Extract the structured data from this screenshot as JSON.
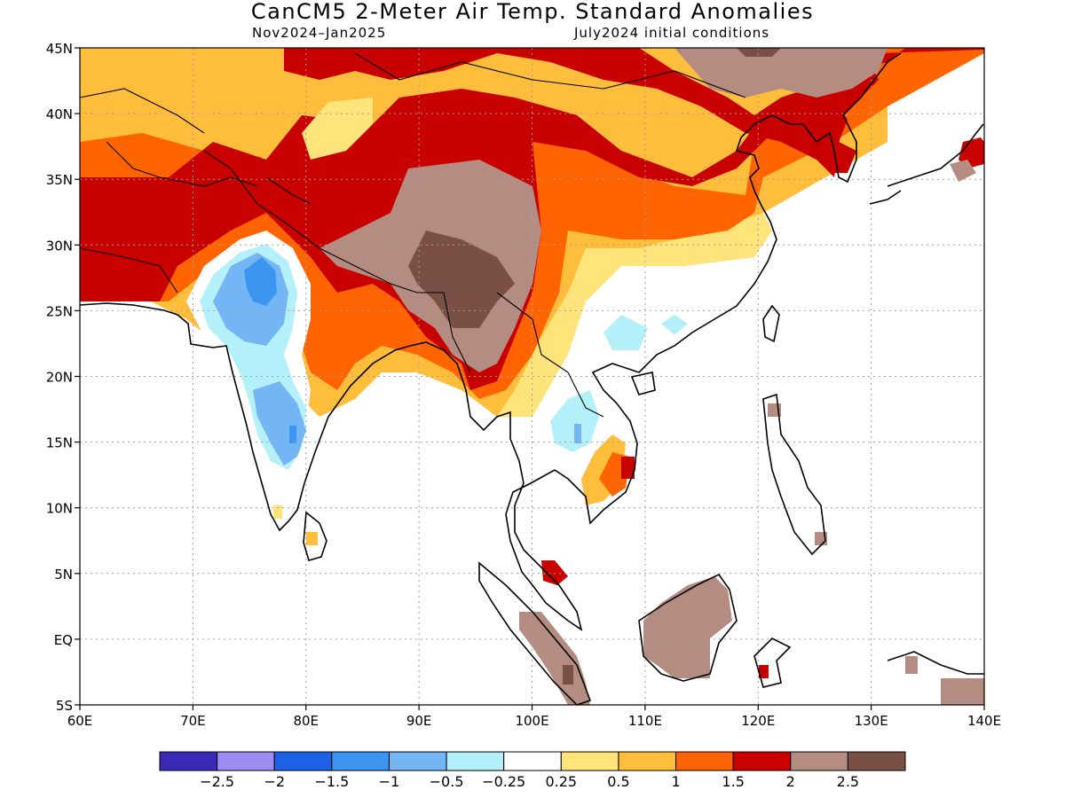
{
  "title": "CanCM5 2-Meter Air Temp. Standard Anomalies",
  "subtitle_left": "Nov2024–Jan2025",
  "subtitle_right": "July2024 initial conditions",
  "lat_labels": [
    "45N",
    "40N",
    "35N",
    "30N",
    "25N",
    "20N",
    "15N",
    "10N",
    "5N",
    "EQ",
    "5S"
  ],
  "lon_labels": [
    "60E",
    "70E",
    "80E",
    "90E",
    "100E",
    "110E",
    "120E",
    "130E",
    "140E"
  ],
  "colorbar": {
    "colors": [
      "#3b28b4",
      "#9b8bf2",
      "#1d61e6",
      "#3c95f0",
      "#73b5f5",
      "#b4f0fa",
      "#ffffff",
      "#ffe37b",
      "#ffbd3c",
      "#ff6400",
      "#c80000",
      "#b48c82",
      "#7a5046"
    ],
    "labels": [
      "−2.5",
      "−2",
      "−1.5",
      "−1",
      "−0.5",
      "−0.25",
      "0.25",
      "0.5",
      "1",
      "1.5",
      "2",
      "2.5"
    ]
  },
  "map_colors": {
    "ocean": "#ffffff",
    "coast": "#000000",
    "grid": "#a0a0a0"
  }
}
